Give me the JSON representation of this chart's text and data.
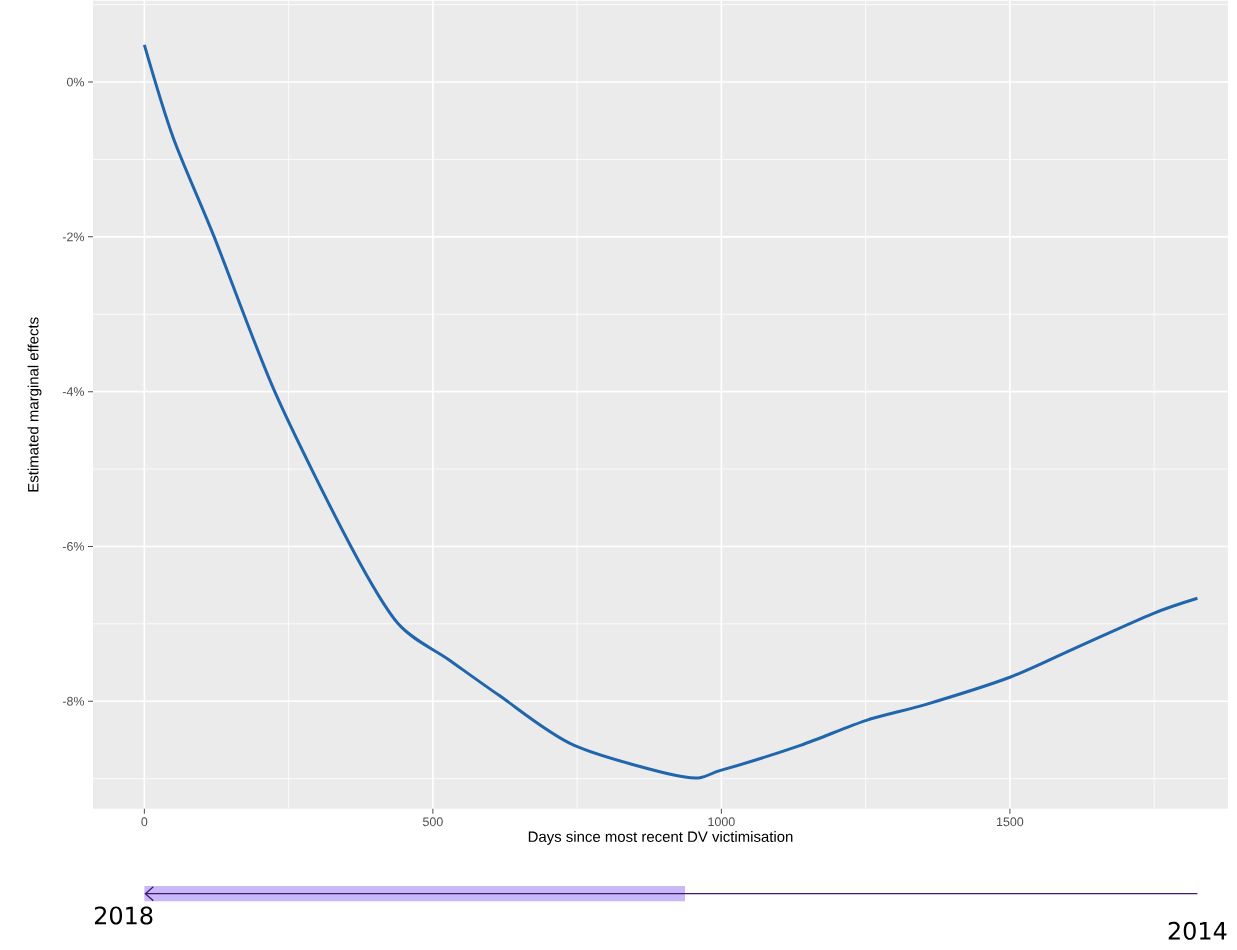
{
  "chart_data": {
    "type": "line",
    "xlabel": "Days since most recent DV victimisation",
    "ylabel": "Estimated marginal effects",
    "x": [
      0,
      50,
      121,
      226,
      358,
      440,
      527,
      614,
      745,
      937,
      1000,
      1137,
      1250,
      1355,
      1500,
      1617,
      1747,
      1825
    ],
    "series": [
      {
        "color": "#2166ac",
        "values": [
          0.48,
          -0.72,
          -2.0,
          -4.0,
          -6.0,
          -7.0,
          -7.46,
          -7.92,
          -8.57,
          -8.98,
          -8.89,
          -8.57,
          -8.25,
          -8.04,
          -7.69,
          -7.3,
          -6.87,
          -6.67
        ]
      }
    ],
    "xlim": [
      -89,
      1878
    ],
    "ylim": [
      -9.39,
      1.05
    ],
    "xticks": [
      0,
      500,
      1000,
      1500
    ],
    "yticks": [
      {
        "value": -8,
        "label": "-8%"
      },
      {
        "value": -6,
        "label": "-6%"
      },
      {
        "value": -4,
        "label": "-4%"
      },
      {
        "value": -2,
        "label": "-2%"
      },
      {
        "value": 0,
        "label": "0%"
      }
    ],
    "grid": true,
    "marker": "none",
    "line_style": "solid",
    "annotations": [
      "2018",
      "2014"
    ]
  }
}
